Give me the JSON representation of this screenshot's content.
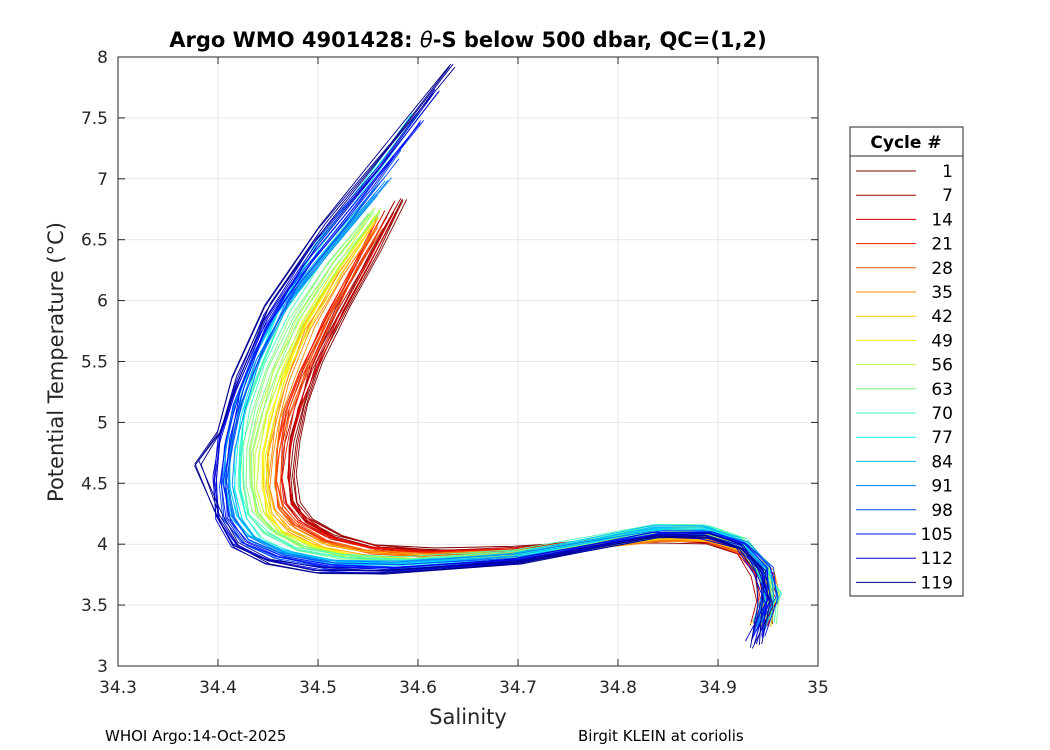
{
  "chart_data": {
    "type": "line",
    "title_prefix": "Argo WMO 4901428: ",
    "title_symbol": "θ",
    "title_suffix": "-S below 500 dbar,  QC=(1,2)",
    "xlabel": "Salinity",
    "ylabel": "Potential Temperature (°C)",
    "xlim": [
      34.3,
      35.0
    ],
    "ylim": [
      3.0,
      8.0
    ],
    "xticks": [
      "34.3",
      "34.4",
      "34.5",
      "34.6",
      "34.7",
      "34.8",
      "34.9",
      "35"
    ],
    "yticks": [
      "3",
      "3.5",
      "4",
      "4.5",
      "5",
      "5.5",
      "6",
      "6.5",
      "7",
      "7.5",
      "8"
    ],
    "grid": true,
    "legend": {
      "title": "Cycle #",
      "placement": "outside-right",
      "entries": [
        "1",
        "7",
        "14",
        "21",
        "28",
        "35",
        "42",
        "49",
        "56",
        "63",
        "70",
        "77",
        "84",
        "91",
        "98",
        "105",
        "112",
        "119"
      ],
      "colors": [
        "#800000",
        "#a80000",
        "#d20000",
        "#f31800",
        "#ff5000",
        "#ff8a00",
        "#ffc300",
        "#f2ff0c",
        "#b9ff46",
        "#7fff7f",
        "#46ffb9",
        "#0cf2f2",
        "#00b8ff",
        "#0080ff",
        "#0048ff",
        "#0010ff",
        "#0000d4",
        "#00008f"
      ]
    },
    "series": [
      {
        "name": "1",
        "color": "#800000",
        "s": [
          34.586,
          34.56,
          34.53,
          34.5,
          34.488,
          34.478,
          34.474,
          34.478,
          34.49,
          34.52,
          34.56,
          34.62,
          34.7,
          34.78,
          34.84,
          34.89,
          34.925,
          34.945,
          34.95,
          34.945
        ],
        "t": [
          6.83,
          6.4,
          5.95,
          5.5,
          5.15,
          4.85,
          4.58,
          4.35,
          4.2,
          4.06,
          3.98,
          3.94,
          3.96,
          4.01,
          4.03,
          4.01,
          3.92,
          3.75,
          3.55,
          3.35
        ]
      },
      {
        "name": "7",
        "color": "#a80000",
        "s": [
          34.58,
          34.55,
          34.52,
          34.495,
          34.482,
          34.474,
          34.47,
          34.474,
          34.488,
          34.52,
          34.56,
          34.62,
          34.7,
          34.78,
          34.84,
          34.89,
          34.925,
          34.945,
          34.95,
          34.945
        ],
        "t": [
          6.8,
          6.35,
          5.9,
          5.45,
          5.12,
          4.82,
          4.56,
          4.34,
          4.19,
          4.05,
          3.97,
          3.93,
          3.95,
          4.01,
          4.04,
          4.02,
          3.92,
          3.74,
          3.54,
          3.33
        ]
      },
      {
        "name": "14",
        "color": "#d20000",
        "s": [
          34.572,
          34.545,
          34.515,
          34.49,
          34.476,
          34.468,
          34.466,
          34.47,
          34.485,
          34.515,
          34.555,
          34.615,
          34.7,
          34.78,
          34.84,
          34.89,
          34.925,
          34.945,
          34.952,
          34.946
        ],
        "t": [
          6.72,
          6.3,
          5.85,
          5.42,
          5.1,
          4.8,
          4.55,
          4.33,
          4.18,
          4.04,
          3.96,
          3.92,
          3.95,
          4.01,
          4.04,
          4.02,
          3.92,
          3.75,
          3.55,
          3.32
        ]
      },
      {
        "name": "21",
        "color": "#f31800",
        "s": [
          34.565,
          34.538,
          34.51,
          34.486,
          34.472,
          34.465,
          34.463,
          34.467,
          34.482,
          34.512,
          34.55,
          34.61,
          34.7,
          34.78,
          34.84,
          34.89,
          34.925,
          34.945,
          34.95,
          34.944
        ],
        "t": [
          6.66,
          6.25,
          5.82,
          5.4,
          5.08,
          4.78,
          4.52,
          4.31,
          4.17,
          4.03,
          3.95,
          3.91,
          3.94,
          4.0,
          4.04,
          4.03,
          3.94,
          3.76,
          3.56,
          3.33
        ]
      },
      {
        "name": "28",
        "color": "#ff5000",
        "s": [
          34.56,
          34.532,
          34.505,
          34.482,
          34.468,
          34.46,
          34.458,
          34.463,
          34.478,
          34.508,
          34.548,
          34.61,
          34.7,
          34.78,
          34.84,
          34.89,
          34.925,
          34.945,
          34.95,
          34.943
        ],
        "t": [
          6.6,
          6.2,
          5.78,
          5.36,
          5.05,
          4.76,
          4.5,
          4.3,
          4.15,
          4.02,
          3.94,
          3.91,
          3.94,
          4.0,
          4.05,
          4.04,
          3.95,
          3.78,
          3.57,
          3.34
        ]
      },
      {
        "name": "35",
        "color": "#ff8a00",
        "s": [
          34.555,
          34.52,
          34.49,
          34.47,
          34.458,
          34.452,
          34.45,
          34.456,
          34.472,
          34.505,
          34.545,
          34.605,
          34.7,
          34.78,
          34.84,
          34.89,
          34.925,
          34.945,
          34.95,
          34.942
        ],
        "t": [
          6.62,
          6.2,
          5.78,
          5.36,
          5.04,
          4.74,
          4.48,
          4.28,
          4.13,
          4.0,
          3.93,
          3.9,
          3.93,
          4.0,
          4.05,
          4.04,
          3.95,
          3.78,
          3.57,
          3.35
        ]
      },
      {
        "name": "42",
        "color": "#ffc300",
        "s": [
          34.552,
          34.515,
          34.485,
          34.465,
          34.452,
          34.446,
          34.445,
          34.45,
          34.466,
          34.5,
          34.54,
          34.6,
          34.7,
          34.78,
          34.84,
          34.89,
          34.925,
          34.945,
          34.95,
          34.94
        ],
        "t": [
          6.65,
          6.22,
          5.8,
          5.38,
          5.05,
          4.75,
          4.48,
          4.27,
          4.12,
          3.99,
          3.92,
          3.89,
          3.93,
          4.0,
          4.06,
          4.05,
          3.96,
          3.79,
          3.58,
          3.36
        ]
      },
      {
        "name": "49",
        "color": "#f2ff0c",
        "s": [
          34.555,
          34.518,
          34.486,
          34.464,
          34.45,
          34.443,
          34.442,
          34.447,
          34.463,
          34.497,
          34.538,
          34.6,
          34.7,
          34.78,
          34.84,
          34.89,
          34.925,
          34.945,
          34.952,
          34.944
        ],
        "t": [
          6.7,
          6.26,
          5.82,
          5.4,
          5.06,
          4.75,
          4.47,
          4.26,
          4.11,
          3.98,
          3.91,
          3.88,
          3.92,
          4.0,
          4.07,
          4.07,
          3.98,
          3.8,
          3.58,
          3.35
        ]
      },
      {
        "name": "56",
        "color": "#b9ff46",
        "s": [
          34.56,
          34.52,
          34.485,
          34.46,
          34.446,
          34.438,
          34.437,
          34.442,
          34.458,
          34.49,
          34.532,
          34.595,
          34.7,
          34.78,
          34.84,
          34.89,
          34.925,
          34.945,
          34.955,
          34.948
        ],
        "t": [
          6.75,
          6.3,
          5.85,
          5.42,
          5.08,
          4.76,
          4.47,
          4.25,
          4.1,
          3.97,
          3.9,
          3.87,
          3.92,
          4.02,
          4.1,
          4.1,
          4.0,
          3.82,
          3.6,
          3.36
        ]
      },
      {
        "name": "63",
        "color": "#7fff7f",
        "s": [
          34.555,
          34.512,
          34.476,
          34.452,
          34.438,
          34.43,
          34.43,
          34.436,
          34.452,
          34.485,
          34.528,
          34.59,
          34.7,
          34.78,
          34.84,
          34.89,
          34.925,
          34.945,
          34.955,
          34.948
        ],
        "t": [
          6.72,
          6.28,
          5.84,
          5.42,
          5.08,
          4.76,
          4.47,
          4.24,
          4.09,
          3.96,
          3.89,
          3.86,
          3.92,
          4.03,
          4.12,
          4.12,
          4.02,
          3.83,
          3.6,
          3.35
        ]
      },
      {
        "name": "70",
        "color": "#46ffb9",
        "s": [
          34.55,
          34.505,
          34.468,
          34.445,
          34.43,
          34.424,
          34.424,
          34.43,
          34.447,
          34.48,
          34.524,
          34.588,
          34.7,
          34.78,
          34.84,
          34.89,
          34.925,
          34.945,
          34.955,
          34.948
        ],
        "t": [
          6.8,
          6.35,
          5.9,
          5.46,
          5.1,
          4.77,
          4.47,
          4.23,
          4.08,
          3.95,
          3.88,
          3.86,
          3.92,
          4.04,
          4.14,
          4.13,
          4.03,
          3.84,
          3.6,
          3.35
        ]
      },
      {
        "name": "77",
        "color": "#0cf2f2",
        "s": [
          34.6,
          34.555,
          34.5,
          34.46,
          34.437,
          34.424,
          34.418,
          34.418,
          34.424,
          34.44,
          34.475,
          34.52,
          34.585,
          34.7,
          34.78,
          34.84,
          34.89,
          34.925,
          34.945,
          34.955,
          34.948
        ],
        "t": [
          7.55,
          7.05,
          6.45,
          5.9,
          5.45,
          5.05,
          4.72,
          4.45,
          4.22,
          4.05,
          3.93,
          3.86,
          3.84,
          3.91,
          4.04,
          4.14,
          4.13,
          4.03,
          3.84,
          3.6,
          3.35
        ]
      },
      {
        "name": "84",
        "color": "#00b8ff",
        "s": [
          34.56,
          34.51,
          34.465,
          34.438,
          34.422,
          34.414,
          34.412,
          34.418,
          34.436,
          34.47,
          34.52,
          34.585,
          34.7,
          34.78,
          34.84,
          34.89,
          34.925,
          34.945,
          34.952,
          34.945
        ],
        "t": [
          6.85,
          6.35,
          5.9,
          5.46,
          5.1,
          4.77,
          4.47,
          4.22,
          4.05,
          3.92,
          3.85,
          3.83,
          3.9,
          4.02,
          4.12,
          4.12,
          4.02,
          3.83,
          3.59,
          3.33
        ]
      },
      {
        "name": "91",
        "color": "#0080ff",
        "s": [
          34.57,
          34.52,
          34.47,
          34.44,
          34.422,
          34.412,
          34.41,
          34.415,
          34.432,
          34.466,
          34.515,
          34.58,
          34.7,
          34.78,
          34.84,
          34.89,
          34.925,
          34.945,
          34.95,
          34.943
        ],
        "t": [
          7.0,
          6.5,
          6.0,
          5.52,
          5.12,
          4.78,
          4.47,
          4.22,
          4.04,
          3.91,
          3.84,
          3.82,
          3.89,
          4.0,
          4.09,
          4.09,
          4.0,
          3.81,
          3.57,
          3.3
        ]
      },
      {
        "name": "98",
        "color": "#0048ff",
        "s": [
          34.58,
          34.53,
          34.475,
          34.44,
          34.42,
          34.41,
          34.406,
          34.41,
          34.428,
          34.462,
          34.51,
          34.575,
          34.7,
          34.78,
          34.84,
          34.89,
          34.925,
          34.945,
          34.95,
          34.94
        ],
        "t": [
          7.2,
          6.65,
          6.1,
          5.58,
          5.15,
          4.8,
          4.48,
          4.21,
          4.02,
          3.89,
          3.82,
          3.8,
          3.87,
          3.99,
          4.08,
          4.08,
          3.99,
          3.79,
          3.55,
          3.25
        ]
      },
      {
        "name": "105",
        "color": "#0010ff",
        "s": [
          34.6,
          34.548,
          34.488,
          34.445,
          34.42,
          34.407,
          34.402,
          34.406,
          34.424,
          34.458,
          34.506,
          34.57,
          34.7,
          34.78,
          34.84,
          34.89,
          34.925,
          34.945,
          34.95,
          34.94
        ],
        "t": [
          7.45,
          6.9,
          6.3,
          5.75,
          5.25,
          4.85,
          4.5,
          4.2,
          4.0,
          3.87,
          3.8,
          3.78,
          3.86,
          3.98,
          4.07,
          4.07,
          3.98,
          3.78,
          3.54,
          3.22
        ]
      },
      {
        "name": "112",
        "color": "#0000d4",
        "s": [
          34.622,
          34.566,
          34.5,
          34.452,
          34.422,
          34.406,
          34.4,
          34.404,
          34.42,
          34.454,
          34.502,
          34.568,
          34.7,
          34.78,
          34.84,
          34.89,
          34.925,
          34.945,
          34.948,
          34.938
        ],
        "t": [
          7.7,
          7.1,
          6.45,
          5.85,
          5.3,
          4.88,
          4.52,
          4.2,
          3.98,
          3.85,
          3.78,
          3.77,
          3.85,
          3.97,
          4.06,
          4.06,
          3.97,
          3.77,
          3.52,
          3.18
        ]
      },
      {
        "name": "119",
        "color": "#00008f",
        "s": [
          34.635,
          34.575,
          34.505,
          34.45,
          34.418,
          34.4,
          34.38,
          34.4,
          34.418,
          34.452,
          34.5,
          34.565,
          34.7,
          34.78,
          34.84,
          34.89,
          34.925,
          34.945,
          34.948,
          34.938
        ],
        "t": [
          7.92,
          7.3,
          6.6,
          5.95,
          5.35,
          4.9,
          4.65,
          4.25,
          3.98,
          3.84,
          3.77,
          3.76,
          3.84,
          3.96,
          4.05,
          4.05,
          3.96,
          3.76,
          3.5,
          3.15
        ]
      }
    ]
  },
  "footer": {
    "left": "WHOI Argo:14-Oct-2025",
    "right": "Birgit KLEIN at coriolis"
  }
}
